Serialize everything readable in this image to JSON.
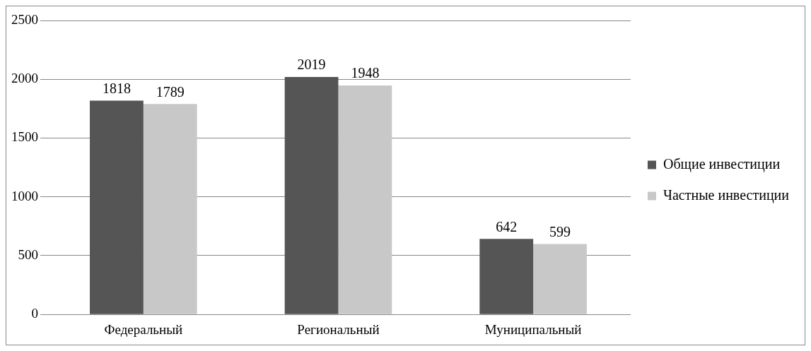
{
  "chart_data": {
    "type": "bar",
    "categories": [
      "Федеральный",
      "Региональный",
      "Муниципальный"
    ],
    "series": [
      {
        "name": "Общие инвестиции",
        "color": "#555555",
        "values": [
          1818,
          2019,
          642
        ]
      },
      {
        "name": "Частные инвестиции",
        "color": "#c8c8c8",
        "values": [
          1789,
          1948,
          599
        ]
      }
    ],
    "ylim": [
      0,
      2500
    ],
    "yticks": [
      0,
      500,
      1000,
      1500,
      2000,
      2500
    ],
    "grid": "y",
    "legend": "right",
    "data_labels": true
  }
}
